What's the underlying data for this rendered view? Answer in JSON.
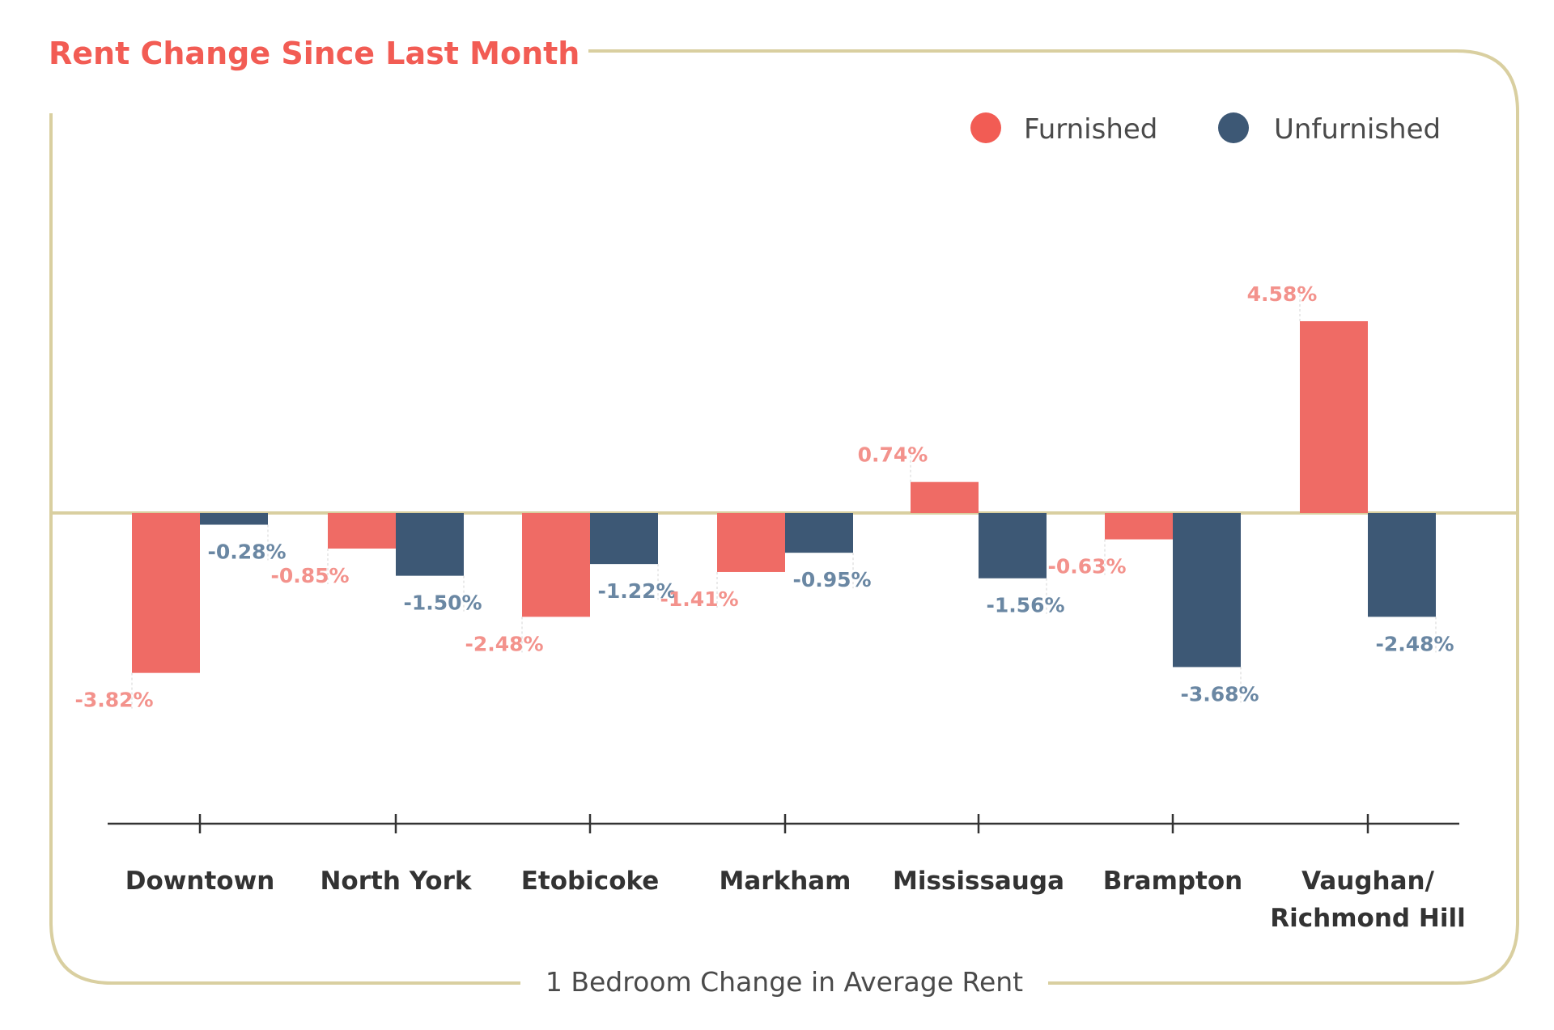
{
  "chart_data": {
    "type": "bar",
    "title": "Rent Change Since Last Month",
    "caption": "1 Bedroom Change in Average Rent",
    "categories": [
      "Downtown",
      "North York",
      "Etobicoke",
      "Markham",
      "Mississauga",
      "Brampton",
      "Vaughan/\nRichmond Hill"
    ],
    "series": [
      {
        "name": "Furnished",
        "color": "#ef6b65",
        "label_color": "#f3928c",
        "values": [
          -3.82,
          -0.85,
          -2.48,
          -1.41,
          0.74,
          -0.63,
          4.58
        ],
        "labels": [
          "-3.82%",
          "-0.85%",
          "-2.48%",
          "-1.41%",
          "0.74%",
          "-0.63%",
          "4.58%"
        ]
      },
      {
        "name": "Unfurnished",
        "color": "#3d5875",
        "label_color": "#6a87a3",
        "values": [
          -0.28,
          -1.5,
          -1.22,
          -0.95,
          -1.56,
          -3.68,
          -2.48
        ],
        "labels": [
          "-0.28%",
          "-1.50%",
          "-1.22%",
          "-0.95%",
          "-1.56%",
          "-3.68%",
          "-2.48%"
        ]
      }
    ],
    "ylim": [
      -5.0,
      4.58
    ],
    "legend": "top-right",
    "grid": false,
    "frame_color": "#d9cfa0",
    "axis_color": "#333333"
  }
}
